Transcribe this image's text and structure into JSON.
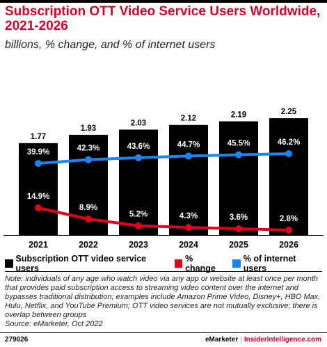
{
  "header": {
    "title": "Subscription OTT Video Service Users Worldwide, 2021-2026",
    "subtitle": "billions, % change, and % of internet users"
  },
  "colors": {
    "bars": "#000000",
    "pct_change": "#e3001b",
    "pct_internet": "#1a86f2",
    "title": "#d6002a"
  },
  "chart_data": {
    "type": "bar",
    "categories": [
      "2021",
      "2022",
      "2023",
      "2024",
      "2025",
      "2026"
    ],
    "series": [
      {
        "name": "Subscription OTT video service users",
        "type": "bar",
        "values": [
          1.77,
          1.93,
          2.03,
          2.12,
          2.19,
          2.25
        ],
        "labels": [
          "1.77",
          "1.93",
          "2.03",
          "2.12",
          "2.19",
          "2.25"
        ]
      },
      {
        "name": "% change",
        "type": "line",
        "values": [
          14.9,
          8.9,
          5.2,
          4.3,
          3.6,
          2.8
        ],
        "labels": [
          "14.9%",
          "8.9%",
          "5.2%",
          "4.3%",
          "3.6%",
          "2.8%"
        ]
      },
      {
        "name": "% of internet users",
        "type": "line",
        "values": [
          39.9,
          42.3,
          43.6,
          44.7,
          45.5,
          46.2
        ],
        "labels": [
          "39.9%",
          "42.3%",
          "43.6%",
          "44.7%",
          "45.5%",
          "46.2%"
        ]
      }
    ],
    "legend": "bottom",
    "grid": false
  },
  "note": {
    "text": "Note: individuals of any age who watch video via any app or website at least once per month that provides paid subscription access to streaming video content over the internet and bypasses traditional distribution; examples include Amazon Prime Video, Disney+, HBO Max, Hulu, Netflix, and YouTube Premium; OTT video services are not mutually exclusive; there is overlap between groups",
    "source": "Source: eMarketer, Oct 2022"
  },
  "footer": {
    "code": "279026",
    "brand": "eMarketer",
    "separator": "|",
    "site": "InsiderIntelligence.com"
  }
}
